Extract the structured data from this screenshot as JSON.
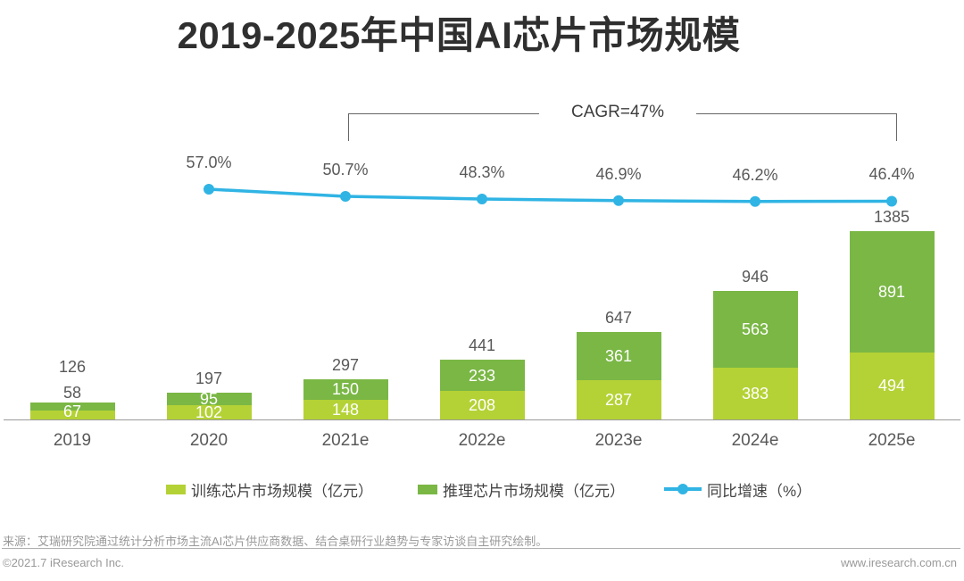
{
  "title": "2019-2025年中国AI芯片市场规模",
  "chart_data": {
    "type": "bar",
    "subtype": "stacked-bar-with-line",
    "categories": [
      "2019",
      "2020",
      "2021e",
      "2022e",
      "2023e",
      "2024e",
      "2025e"
    ],
    "series": [
      {
        "name": "训练芯片市场规模（亿元）",
        "values": [
          67,
          102,
          148,
          208,
          287,
          383,
          494
        ],
        "color": "#b4d235"
      },
      {
        "name": "推理芯片市场规模（亿元）",
        "values": [
          58,
          95,
          150,
          233,
          361,
          563,
          891
        ],
        "color": "#7ab745"
      }
    ],
    "totals": [
      126,
      197,
      297,
      441,
      647,
      946,
      1385
    ],
    "line": {
      "name": "同比增速（%）",
      "start_category": "2020",
      "values_pct": [
        57.0,
        50.7,
        48.3,
        46.9,
        46.2,
        46.4
      ],
      "labels": [
        "57.0%",
        "50.7%",
        "48.3%",
        "46.9%",
        "46.2%",
        "46.4%"
      ],
      "color": "#30b4e4"
    },
    "annotation": {
      "text": "CAGR=47%",
      "from": "2021e",
      "to": "2025e"
    },
    "title": "2019-2025年中国AI芯片市场规模",
    "xlabel": "",
    "ylabel": "",
    "unit": "亿元",
    "grid": false,
    "legend_position": "bottom"
  },
  "footer": {
    "source": "来源：艾瑞研究院通过统计分析市场主流AI芯片供应商数据、结合桌研行业趋势与专家访谈自主研究绘制。",
    "copyright": "©2021.7 iResearch Inc.",
    "website": "www.iresearch.com.cn"
  }
}
